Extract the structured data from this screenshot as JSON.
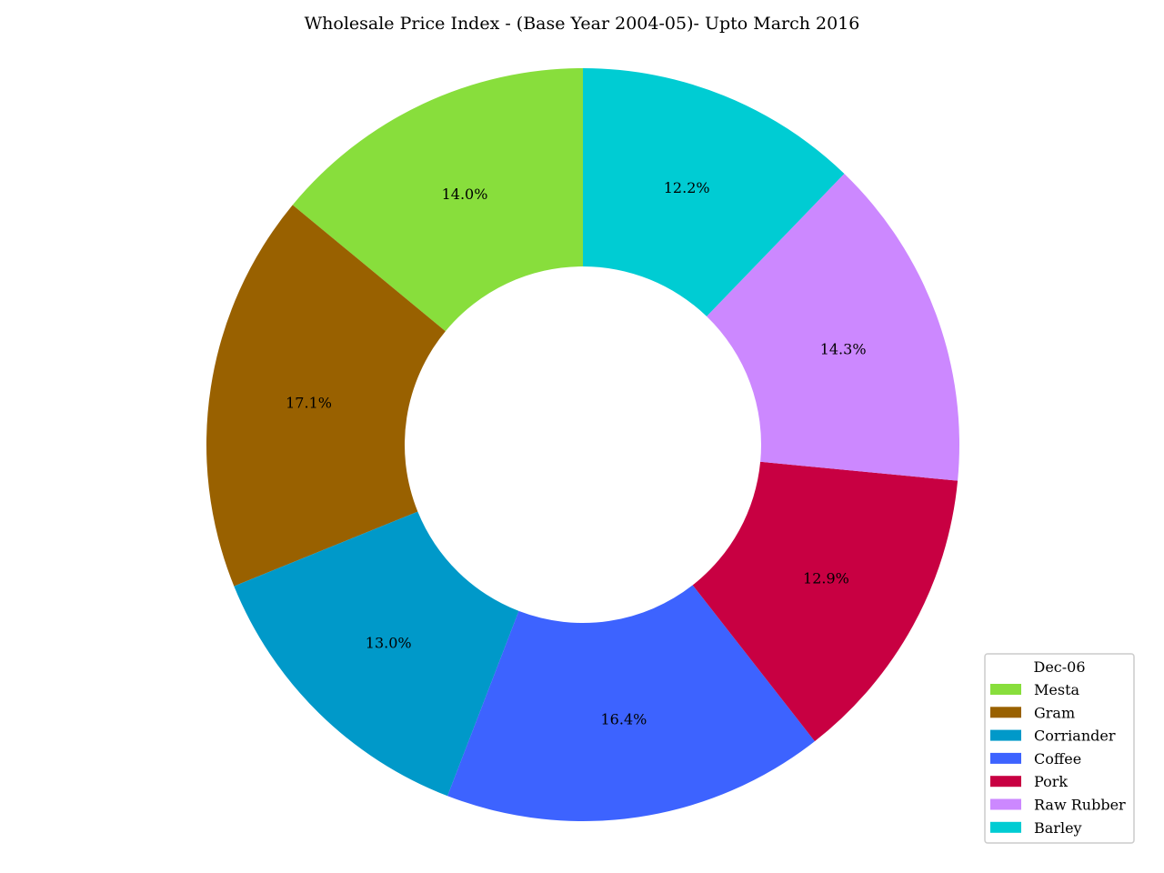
{
  "chart_data": {
    "type": "pie",
    "donut": true,
    "title": "Wholesale Price Index - (Base Year 2004-05)- Upto March 2016",
    "legend_title": "Dec-06",
    "legend_position": "lower-right",
    "slices": [
      {
        "label": "Mesta",
        "percent": 14.0,
        "percent_label": "14.0%",
        "color": "#88de3c"
      },
      {
        "label": "Gram",
        "percent": 17.1,
        "percent_label": "17.1%",
        "color": "#996100"
      },
      {
        "label": "Corriander",
        "percent": 13.0,
        "percent_label": "13.0%",
        "color": "#0099c9"
      },
      {
        "label": "Coffee",
        "percent": 16.4,
        "percent_label": "16.4%",
        "color": "#3d63ff"
      },
      {
        "label": "Pork",
        "percent": 12.9,
        "percent_label": "12.9%",
        "color": "#c80042"
      },
      {
        "label": "Raw Rubber",
        "percent": 14.3,
        "percent_label": "14.3%",
        "color": "#cc88ff"
      },
      {
        "label": "Barley",
        "percent": 12.2,
        "percent_label": "12.2%",
        "color": "#00ccd3"
      }
    ]
  }
}
